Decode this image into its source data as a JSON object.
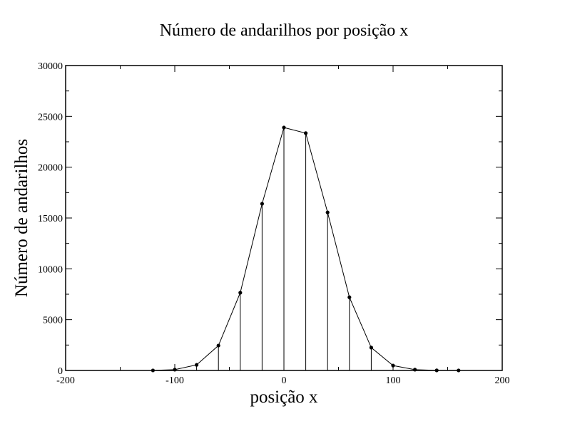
{
  "chart_data": {
    "type": "line",
    "title": "Número de andarilhos por posição x",
    "xlabel": "posição x",
    "ylabel": "Número de andarilhos",
    "xlim": [
      -200,
      200
    ],
    "ylim": [
      0,
      30000
    ],
    "x_ticks": [
      -200,
      -100,
      0,
      100,
      200
    ],
    "y_ticks": [
      0,
      5000,
      10000,
      15000,
      20000,
      25000,
      30000
    ],
    "grid": false,
    "drop_lines": true,
    "colors": {
      "line": "#000000",
      "marker": "#000000",
      "axes": "#000000"
    },
    "x": [
      -120,
      -100,
      -80,
      -60,
      -40,
      -20,
      0,
      20,
      40,
      60,
      80,
      100,
      120,
      140,
      160
    ],
    "y": [
      5,
      80,
      550,
      2450,
      7650,
      16400,
      23900,
      23350,
      15550,
      7200,
      2250,
      480,
      80,
      10,
      5
    ]
  }
}
